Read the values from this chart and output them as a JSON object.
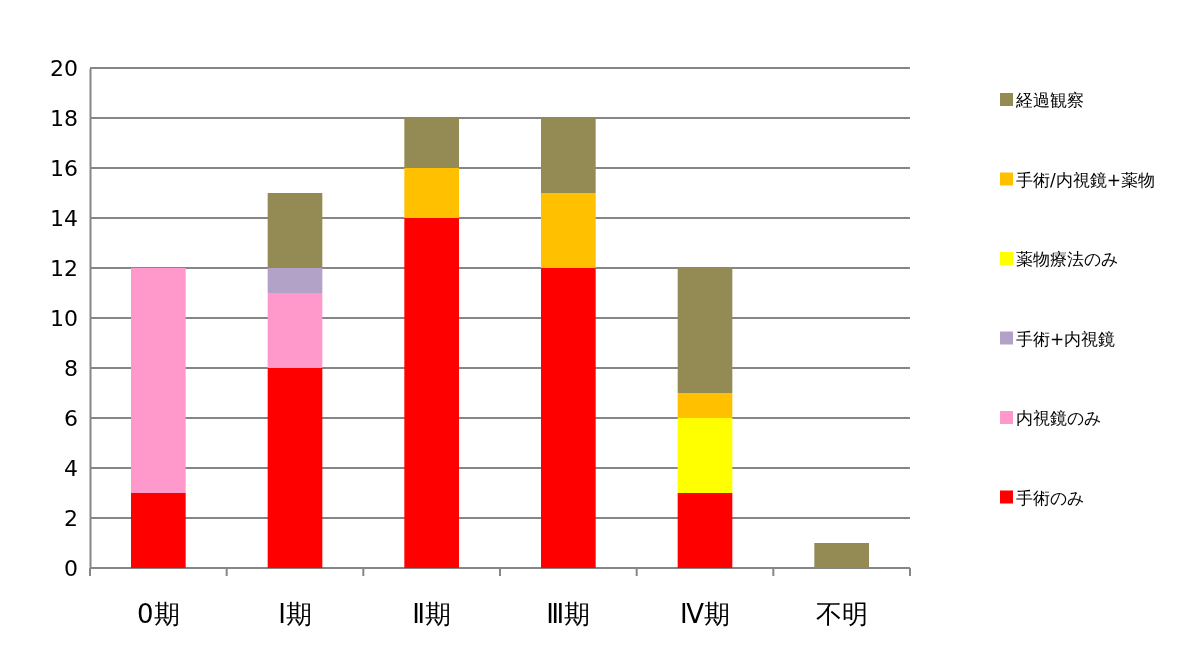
{
  "chart_data": {
    "type": "bar",
    "stacked": true,
    "categories": [
      "0期",
      "Ⅰ期",
      "Ⅱ期",
      "Ⅲ期",
      "Ⅳ期",
      "不明"
    ],
    "series": [
      {
        "name": "手術のみ",
        "color": "#ff0000",
        "values": [
          3,
          8,
          14,
          12,
          3,
          null
        ]
      },
      {
        "name": "内視鏡のみ",
        "color": "#ff99cc",
        "values": [
          9,
          3,
          null,
          null,
          null,
          null
        ]
      },
      {
        "name": "手術+内視鏡",
        "color": "#b3a2c7",
        "values": [
          null,
          1,
          null,
          null,
          null,
          null
        ]
      },
      {
        "name": "薬物療法のみ",
        "color": "#ffff00",
        "values": [
          null,
          null,
          null,
          null,
          3,
          null
        ]
      },
      {
        "name": "手術/内視鏡+薬物",
        "color": "#ffc000",
        "values": [
          null,
          null,
          2,
          3,
          1,
          null
        ]
      },
      {
        "name": "経過観察",
        "color": "#948a54",
        "values": [
          null,
          3,
          2,
          3,
          5,
          1
        ]
      }
    ],
    "ylim": [
      0,
      20
    ],
    "yticks": [
      0,
      2,
      4,
      6,
      8,
      10,
      12,
      14,
      16,
      18,
      20
    ],
    "grid": "y",
    "legend": "right"
  }
}
